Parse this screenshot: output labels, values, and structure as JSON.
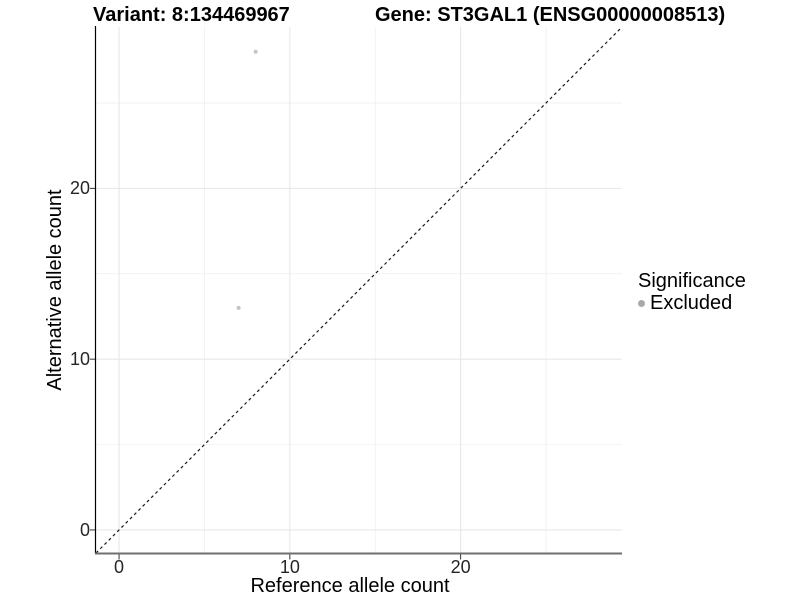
{
  "chart_data": {
    "type": "scatter",
    "title_left": "Variant: 8:134469967",
    "title_right": "Gene: ST3GAL1 (ENSG00000008513)",
    "xlabel": "Reference allele count",
    "ylabel": "Alternative allele count",
    "xlim": [
      -1.35,
      29.45
    ],
    "ylim": [
      -1.35,
      29.45
    ],
    "x_major_ticks": [
      0,
      10,
      20
    ],
    "x_minor_ticks": [
      5,
      15,
      25
    ],
    "y_major_ticks": [
      0,
      10,
      20
    ],
    "y_minor_ticks": [
      5,
      15,
      25
    ],
    "grid": true,
    "identity_line": {
      "style": "dashed",
      "from": [
        -1.35,
        -1.35
      ],
      "to": [
        29.45,
        29.45
      ],
      "color": "#1a1a1a"
    },
    "series": [
      {
        "name": "Excluded",
        "color": "#c3c3c3",
        "points": [
          {
            "x": 8,
            "y": 28
          },
          {
            "x": 7,
            "y": 13
          }
        ]
      }
    ],
    "legend": {
      "title": "Significance",
      "position": "right",
      "items": [
        {
          "label": "Excluded",
          "color": "#a9a9a9"
        }
      ]
    },
    "style": {
      "grid_major_color": "#e7e7e7",
      "grid_minor_color": "#ededed",
      "y_axis_line_color": "#000000",
      "x_axis_line_color": "#6f6f6f",
      "tick_mark_color": "#333333"
    }
  }
}
